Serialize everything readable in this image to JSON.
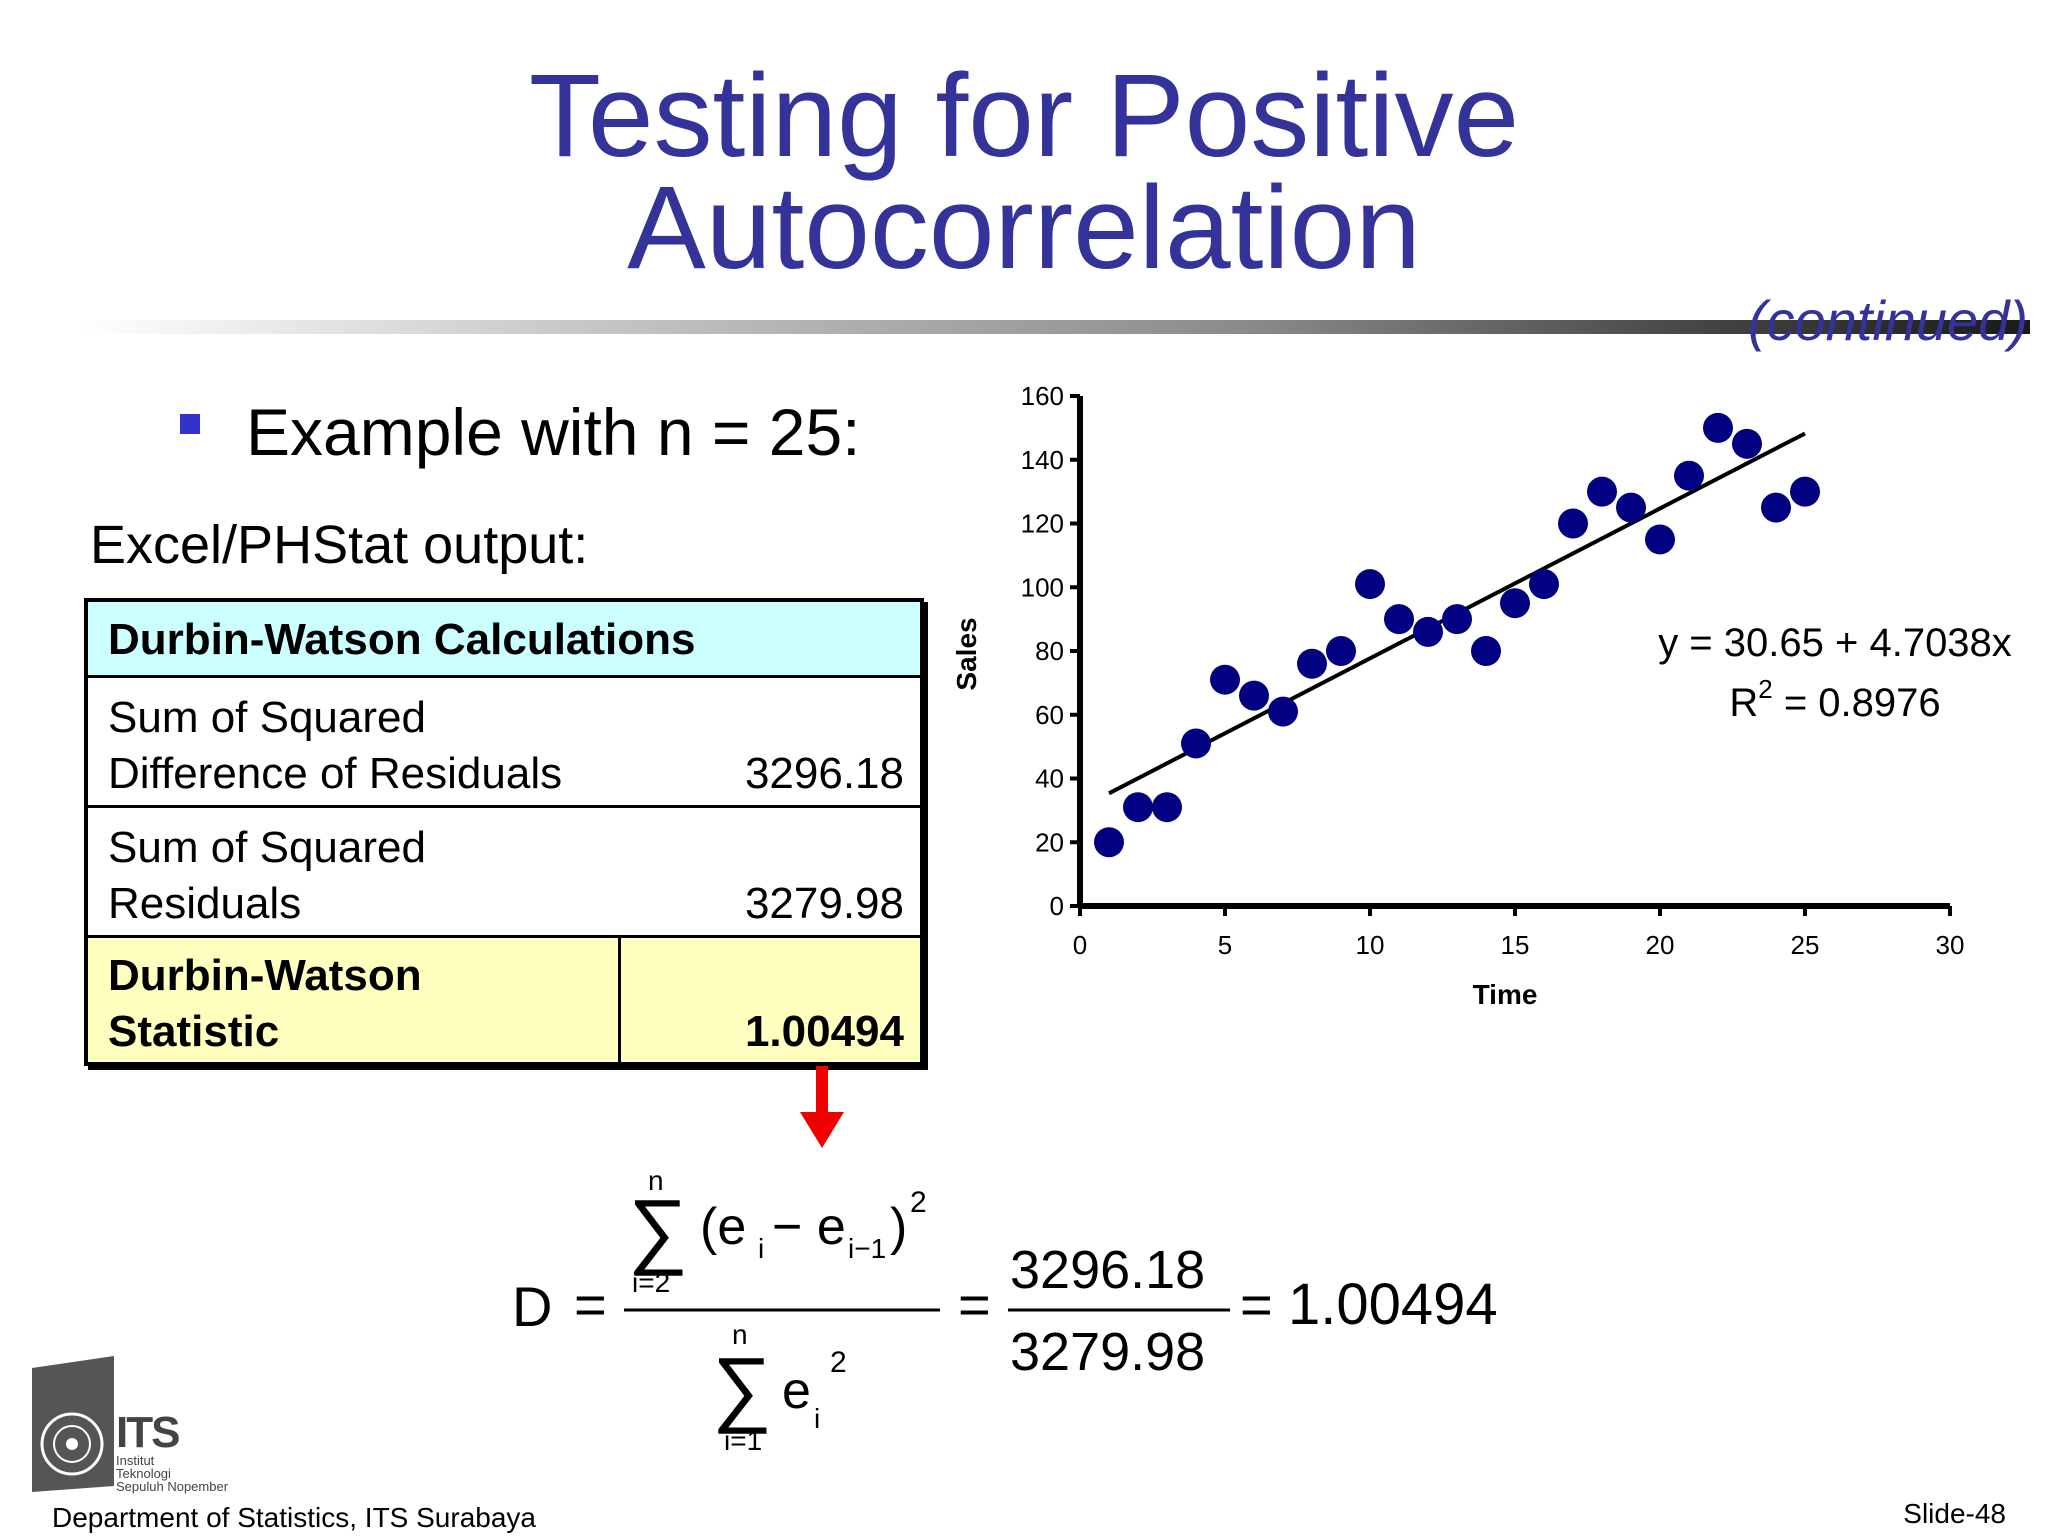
{
  "title_line1": "Testing for Positive",
  "title_line2": "Autocorrelation",
  "continued": "(continued)",
  "bullet": "Example with  n = 25:",
  "excel_label": "Excel/PHStat output:",
  "table": {
    "header": "Durbin-Watson Calculations",
    "row1_label_1": "Sum of Squared",
    "row1_label_2": "Difference of Residuals",
    "row1_value": "3296.18",
    "row2_label_1": "Sum of Squared",
    "row2_label_2": "Residuals",
    "row2_value": "3279.98",
    "row3_label_1": "Durbin-Watson",
    "row3_label_2": "Statistic",
    "row3_value": "1.00494"
  },
  "formula": {
    "D": "D",
    "n_top": "n",
    "i2": "i=2",
    "e_diff_open": "(e",
    "sub_i": "i",
    "minus_e": " − e",
    "sub_i_minus_1": "i−1",
    "close_paren": ")",
    "sup_2": "2",
    "n_bottom": "n",
    "i1": "i=1",
    "e": "e",
    "num_value": "3296.18",
    "den_value": "3279.98",
    "result": "1.00494"
  },
  "chart_data": {
    "type": "scatter",
    "xlabel": "Time",
    "ylabel": "Sales",
    "xlim": [
      0,
      30
    ],
    "ylim": [
      0,
      160
    ],
    "x_ticks": [
      0,
      5,
      10,
      15,
      20,
      25,
      30
    ],
    "y_ticks": [
      0,
      20,
      40,
      60,
      80,
      100,
      120,
      140,
      160
    ],
    "points": [
      [
        1,
        20
      ],
      [
        2,
        31
      ],
      [
        3,
        31
      ],
      [
        4,
        51
      ],
      [
        5,
        71
      ],
      [
        6,
        66
      ],
      [
        7,
        61
      ],
      [
        8,
        76
      ],
      [
        9,
        80
      ],
      [
        10,
        101
      ],
      [
        11,
        90
      ],
      [
        12,
        86
      ],
      [
        13,
        90
      ],
      [
        14,
        80
      ],
      [
        15,
        95
      ],
      [
        16,
        101
      ],
      [
        17,
        120
      ],
      [
        18,
        130
      ],
      [
        19,
        125
      ],
      [
        20,
        115
      ],
      [
        21,
        135
      ],
      [
        22,
        150
      ],
      [
        23,
        145
      ],
      [
        24,
        125
      ],
      [
        25,
        130
      ]
    ],
    "trendline": {
      "intercept": 30.65,
      "slope": 4.7038,
      "x_range": [
        1,
        25
      ]
    },
    "equation": "y = 30.65 + 4.7038x",
    "r2_label": "R",
    "r2_sup": "2",
    "r2_value": " = 0.8976",
    "marker_color": "#000080",
    "grid": false
  },
  "logo": {
    "its": "ITS",
    "line1": "Institut",
    "line2": "Teknologi",
    "line3": "Sepuluh Nopember"
  },
  "footer_left": "Department of  Statistics, ITS Surabaya",
  "footer_right": "Slide-48",
  "colors": {
    "title": "#333399",
    "table_header_bg": "#ccffff",
    "table_stat_bg": "#ffffc0",
    "arrow": "#ee0000"
  }
}
